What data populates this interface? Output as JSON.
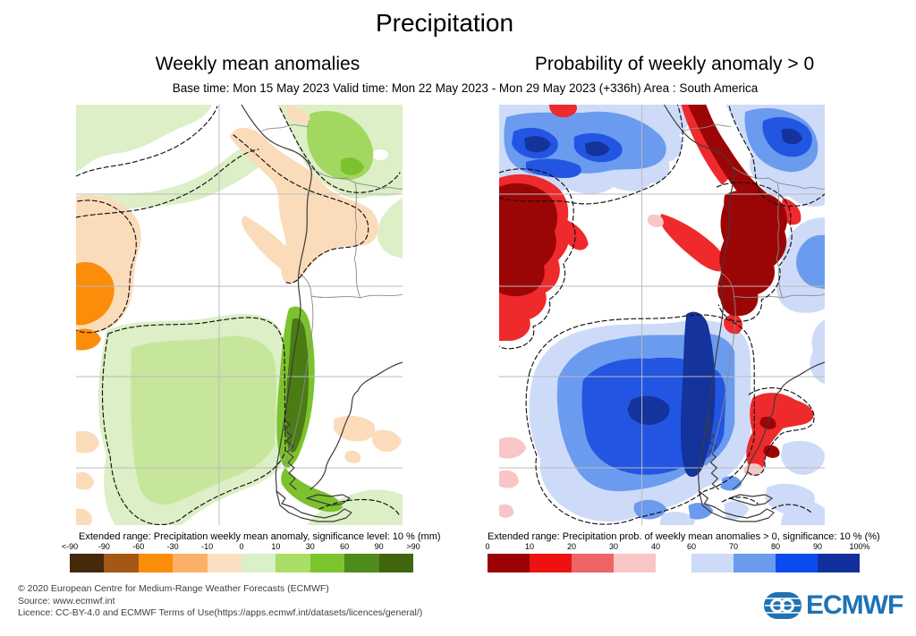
{
  "title": "Precipitation",
  "subtitle": "Base time: Mon 15 May 2023 Valid time: Mon 22 May 2023 - Mon 29 May 2023 (+336h) Area : South America",
  "panels": {
    "left": {
      "title": "Weekly mean anomalies",
      "colorbar": {
        "label": "Extended range: Precipitation weekly mean anomaly, significance level: 10 % (mm)",
        "ticks": [
          "<-90",
          "-90",
          "-60",
          "-30",
          "-10",
          "0",
          "10",
          "30",
          "60",
          "90",
          ">90"
        ],
        "colors": [
          "#46280a",
          "#a55813",
          "#fb8d0a",
          "#fbb066",
          "#fcdfc2",
          "#daf0c6",
          "#abdd66",
          "#7cc42e",
          "#4e8a1c",
          "#3f660f"
        ]
      }
    },
    "right": {
      "title": "Probability of weekly anomaly > 0",
      "colorbar": {
        "label": "Extended range: Precipitation prob. of weekly mean anomalies > 0, significance: 10 % (%)",
        "groups": [
          {
            "ticks": [
              "0",
              "10",
              "20",
              "30",
              "40"
            ],
            "colors": [
              "#9a0306",
              "#ee1111",
              "#ed6565",
              "#f8c6c6"
            ]
          },
          {
            "ticks": [
              "60",
              "70",
              "80",
              "90",
              "100%"
            ],
            "colors": [
              "#cedbf8",
              "#6b9bef",
              "#0b4bee",
              "#12309d"
            ]
          }
        ]
      }
    }
  },
  "footer": {
    "line1": "© 2020 European Centre for Medium-Range Weather Forecasts (ECMWF)",
    "line2": "Source: www.ecmwf.int",
    "line3": "Licence: CC-BY-4.0 and ECMWF Terms of Use(https://apps.ecmwf.int/datasets/licences/general/)"
  },
  "logo": {
    "text": "ECMWF",
    "color": "#1e73b5"
  },
  "map_colors": {
    "pale_green": "#dcefc6",
    "soft_green": "#c6e69c",
    "light_green": "#a2d860",
    "mid_green": "#7cc22e",
    "dark_green": "#4a7c13",
    "peach": "#fbdcba",
    "orange": "#fb8d0a",
    "pale_blue": "#cedbf8",
    "light_blue": "#6b9bef",
    "bright_blue": "#2256e2",
    "navy": "#14339c",
    "dark_red": "#9c0506",
    "bright_red": "#ee2a2c",
    "pink": "#f8c6c6",
    "coast": "#3c3c3c",
    "border": "#8a8a8a",
    "grid": "#bbbbbb",
    "contour": "#111111",
    "logo_blue": "#1e73b5"
  },
  "chart_data": [
    {
      "type": "heatmap",
      "title": "Weekly mean anomalies",
      "variable": "Extended range: Precipitation weekly mean anomaly, significance level: 10 % (mm)",
      "region": "South America",
      "bin_edges_mm": [
        "<-90",
        "-90",
        "-60",
        "-30",
        "-10",
        "0",
        "10",
        "30",
        "60",
        "90",
        ">90"
      ],
      "bin_colors": [
        "#46280a",
        "#a55813",
        "#fb8d0a",
        "#fbb066",
        "#fcdfc2",
        "#daf0c6",
        "#abdd66",
        "#7cc42e",
        "#4e8a1c",
        "#3f660f"
      ],
      "notable_features": [
        "Positive (green) anomalies 0-30 mm over northern South America and far south-east Pacific",
        "Strong positive band 30-90 mm along central/southern Chile coast",
        "Negative (orange/peach) anomalies -30 to -10 mm along Peru/Bolivia Andes and eastern Pacific west of Chile",
        "Dashed contours mark 10 % significance regions"
      ]
    },
    {
      "type": "heatmap",
      "title": "Probability of weekly anomaly > 0",
      "variable": "Extended range: Precipitation prob. of weekly mean anomalies > 0, significance: 10 % (%)",
      "region": "South America",
      "bin_edges_pct": [
        "0",
        "10",
        "20",
        "30",
        "40",
        "60",
        "70",
        "80",
        "90",
        "100%"
      ],
      "bin_colors_low": [
        "#9a0306",
        "#ee1111",
        "#ed6565",
        "#f8c6c6"
      ],
      "bin_colors_high": [
        "#cedbf8",
        "#6b9bef",
        "#0b4bee",
        "#12309d"
      ],
      "notable_features": [
        "Low probability (dark red, 0-10 %) along Andes from Peru through Bolivia into NW Argentina and over east Pacific",
        "High probability (blue, 60-100 %) over northern continent and large region around southern Chile",
        "Navy band >90 % hugging the southern Chilean coast",
        "Red patches 10-30 % over central-east Argentina"
      ]
    }
  ]
}
